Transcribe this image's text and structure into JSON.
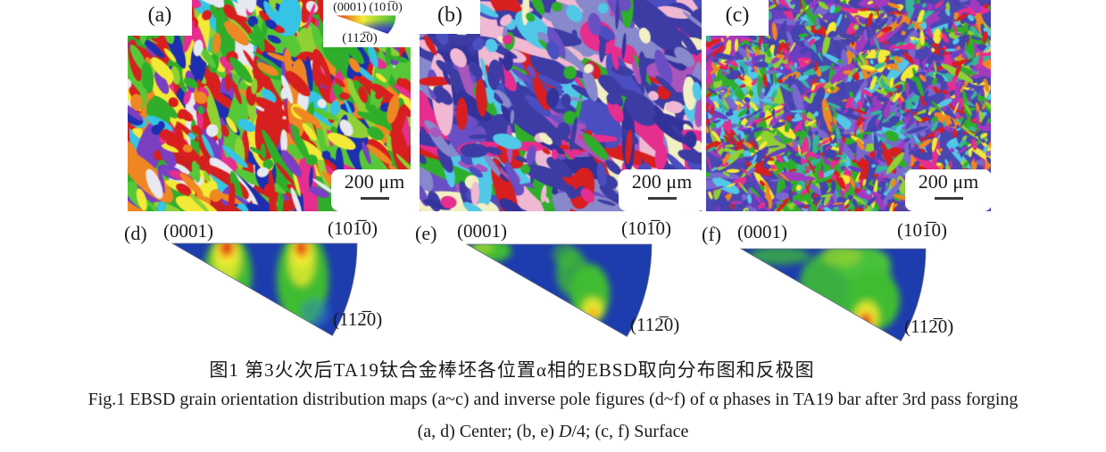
{
  "figure": {
    "maps": [
      {
        "label": "(a)"
      },
      {
        "label": "(b)"
      },
      {
        "label": "(c)"
      }
    ],
    "scale_bar_label": "200 μm",
    "color_key": {
      "label_0001": "(0001)",
      "label_1010": "(101̅0)",
      "label_1120": "(112̅0)"
    },
    "ipf": [
      {
        "label": "(d)",
        "corner_0001": "(0001)",
        "corner_1010": "(101̅0)",
        "corner_1120": "(112̅0)"
      },
      {
        "label": "(e)",
        "corner_0001": "(0001)",
        "corner_1010": "(101̅0)",
        "corner_1120": "(112̅0)"
      },
      {
        "label": "(f)",
        "corner_0001": "(0001)",
        "corner_1010": "(101̅0)",
        "corner_1120": "(112̅0)"
      }
    ],
    "caption_zh": "图1  第3火次后TA19钛合金棒坯各位置α相的EBSD取向分布图和反极图",
    "caption_en": "Fig.1  EBSD grain orientation distribution maps (a~c) and inverse pole figures (d~f) of α phases in TA19 bar after 3rd pass forging",
    "caption_sub_pre": "(a, d) Center; (b, e) ",
    "caption_sub_italic": "D",
    "caption_sub_post": "/4; (c, f) Surface"
  },
  "colors": {
    "background": "#ffffff",
    "text": "#1a1a1a",
    "ipf_blue": "#1d3cae",
    "ipf_green": "#3fbc33",
    "ipf_yellow": "#f2ee35",
    "ipf_orange": "#f59b1e",
    "ipf_red": "#e23013",
    "key_red": "#e23013",
    "key_green": "#3fbc33",
    "key_blue": "#2b2bd5"
  },
  "microstructure": {
    "a": {
      "seed": 11,
      "base": "#c9201f",
      "angle": -0.45,
      "jitter": 1.6,
      "colors": [
        "#d81f1f",
        "#d81f1f",
        "#2fae2b",
        "#2fae2b",
        "#8fd033",
        "#1d2fb0",
        "#35c4e6",
        "#e62e8e",
        "#f2ea36",
        "#7a3fc2",
        "#e8e8f0",
        "#ef8722",
        "#d81f1f",
        "#56c837"
      ],
      "passes": [
        {
          "n": 16,
          "len": [
            40,
            95
          ],
          "wid": [
            16,
            46
          ]
        },
        {
          "n": 280,
          "len": [
            14,
            52
          ],
          "wid": [
            4,
            15
          ]
        },
        {
          "n": 260,
          "len": [
            4,
            20
          ],
          "wid": [
            2,
            7
          ]
        }
      ]
    },
    "b": {
      "seed": 29,
      "base": "#39399e",
      "angle": -0.7,
      "jitter": 1.8,
      "colors": [
        "#3c3ca4",
        "#3c3ca4",
        "#32329a",
        "#4a4ec0",
        "#3c3ca4",
        "#6a4fc4",
        "#a855bc",
        "#d81f1f",
        "#e62e8e",
        "#f0b8d2",
        "#f2efc2",
        "#52c8e8",
        "#2fae2b",
        "#3c3ca4",
        "#8888cc"
      ],
      "passes": [
        {
          "n": 14,
          "len": [
            55,
            115
          ],
          "wid": [
            26,
            62
          ]
        },
        {
          "n": 200,
          "len": [
            18,
            60
          ],
          "wid": [
            5,
            18
          ]
        },
        {
          "n": 220,
          "len": [
            5,
            22
          ],
          "wid": [
            2,
            8
          ]
        }
      ]
    },
    "c": {
      "seed": 47,
      "base": "#4a48b0",
      "angle": 0.0,
      "jitter": 6.28,
      "colors": [
        "#4543ae",
        "#6a3fc2",
        "#a23ac0",
        "#2fae2b",
        "#8fd033",
        "#f2ea36",
        "#e62e8e",
        "#d81f1f",
        "#52c8e8",
        "#4543ae",
        "#7a68d0",
        "#35b59a",
        "#ef8722",
        "#4543ae"
      ],
      "passes": [
        {
          "n": 12,
          "len": [
            28,
            64
          ],
          "wid": [
            14,
            34
          ]
        },
        {
          "n": 520,
          "len": [
            7,
            22
          ],
          "wid": [
            2,
            6
          ]
        },
        {
          "n": 800,
          "len": [
            2,
            9
          ],
          "wid": [
            1,
            3
          ]
        }
      ]
    }
  }
}
